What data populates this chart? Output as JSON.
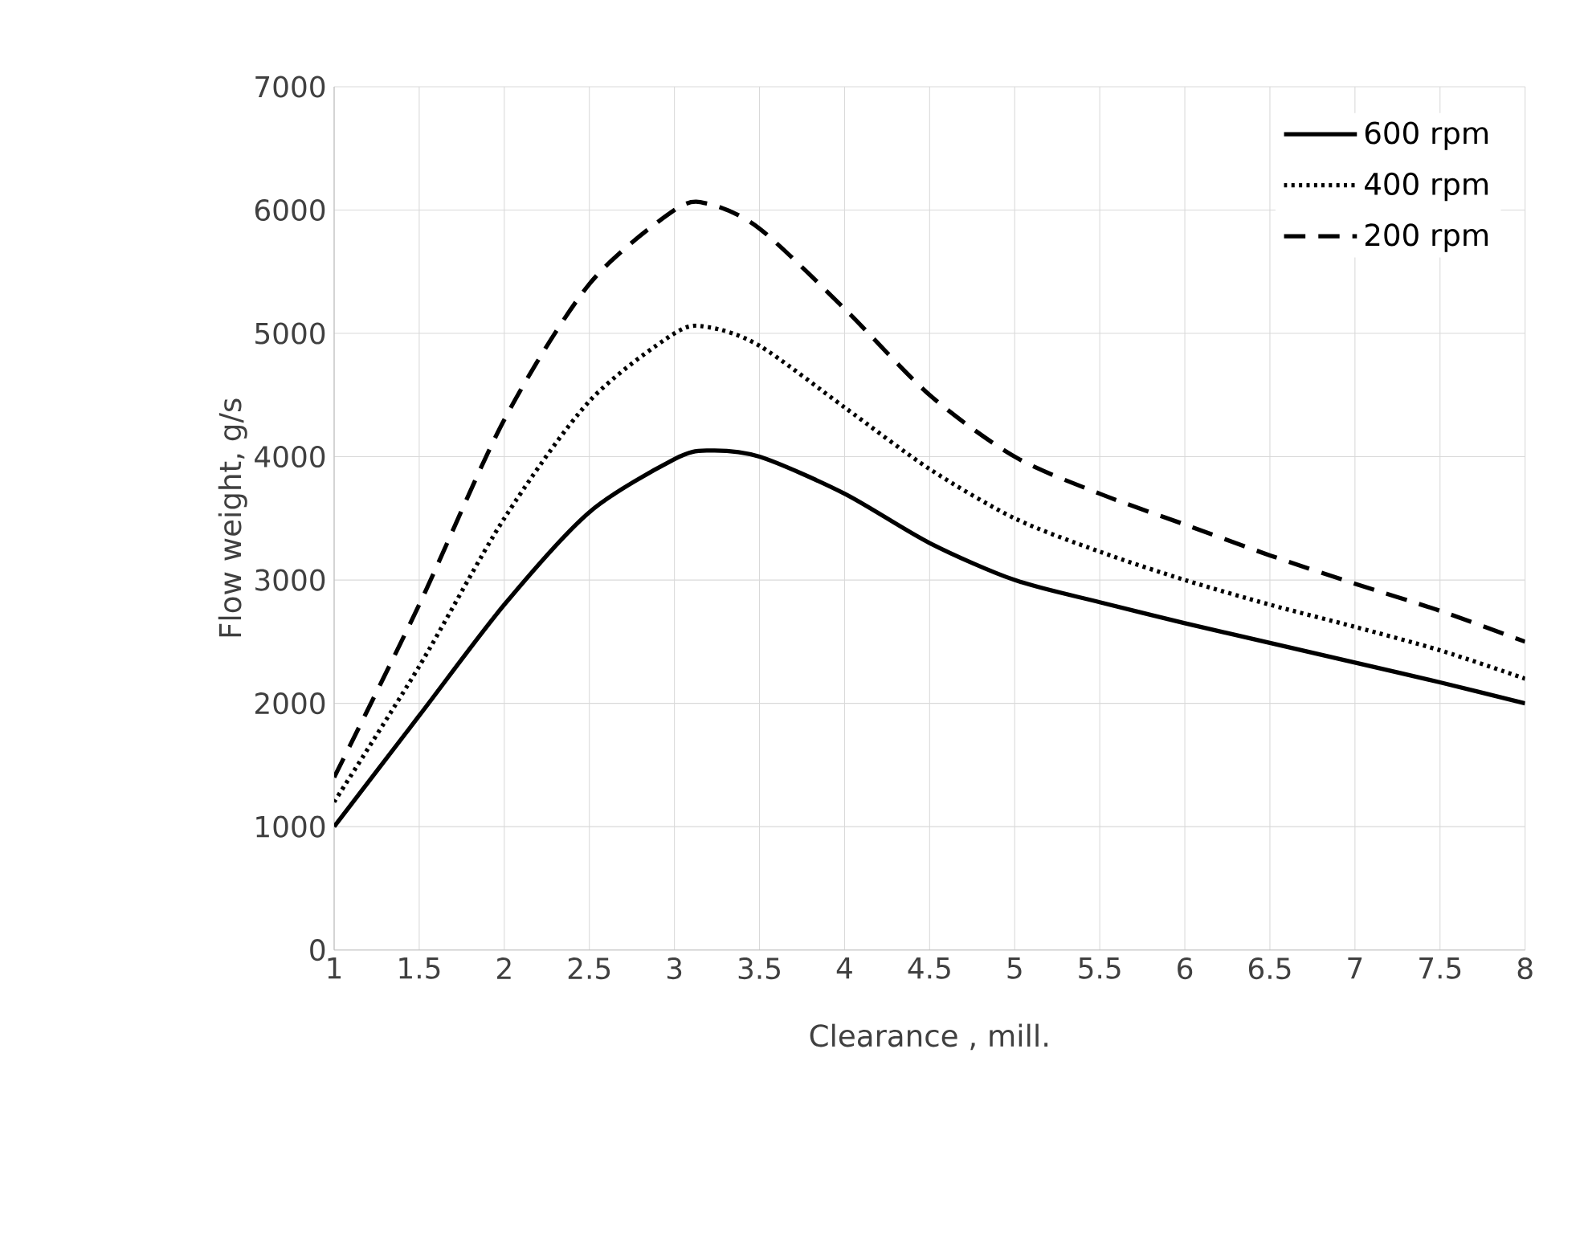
{
  "chart_data": {
    "type": "line",
    "xlabel": "Clearance , mill.",
    "ylabel": "Flow weight, g/s",
    "xlim": [
      1,
      8
    ],
    "ylim": [
      0,
      7000
    ],
    "xticks": [
      1,
      1.5,
      2,
      2.5,
      3,
      3.5,
      4,
      4.5,
      5,
      5.5,
      6,
      6.5,
      7,
      7.5,
      8
    ],
    "yticks": [
      0,
      1000,
      2000,
      3000,
      4000,
      5000,
      6000,
      7000
    ],
    "grid": true,
    "legend": "top right",
    "marker": "none",
    "series": [
      {
        "name": "600 rpm",
        "color": "#000000",
        "line_style": "solid",
        "x": [
          1,
          1.5,
          2,
          2.5,
          3,
          3.2,
          3.5,
          4,
          4.5,
          5,
          5.5,
          6,
          6.5,
          7,
          7.5,
          8
        ],
        "values": [
          1000,
          1900,
          2800,
          3550,
          3980,
          4050,
          4000,
          3700,
          3300,
          3000,
          2820,
          2650,
          2490,
          2330,
          2170,
          2000
        ]
      },
      {
        "name": "400 rpm",
        "color": "#000000",
        "line_style": "dotted",
        "x": [
          1,
          1.5,
          2,
          2.5,
          3,
          3.2,
          3.5,
          4,
          4.5,
          5,
          5.5,
          6,
          6.5,
          7,
          7.5,
          8
        ],
        "values": [
          1200,
          2300,
          3500,
          4450,
          5000,
          5050,
          4900,
          4400,
          3900,
          3500,
          3230,
          3000,
          2800,
          2620,
          2430,
          2200
        ]
      },
      {
        "name": "200 rpm",
        "color": "#000000",
        "line_style": "dashed",
        "x": [
          1,
          1.5,
          2,
          2.5,
          3,
          3.2,
          3.5,
          4,
          4.5,
          5,
          5.5,
          6,
          6.5,
          7,
          7.5,
          8
        ],
        "values": [
          1400,
          2800,
          4300,
          5400,
          6000,
          6050,
          5850,
          5200,
          4500,
          4000,
          3700,
          3450,
          3200,
          2970,
          2750,
          2500
        ]
      }
    ]
  }
}
